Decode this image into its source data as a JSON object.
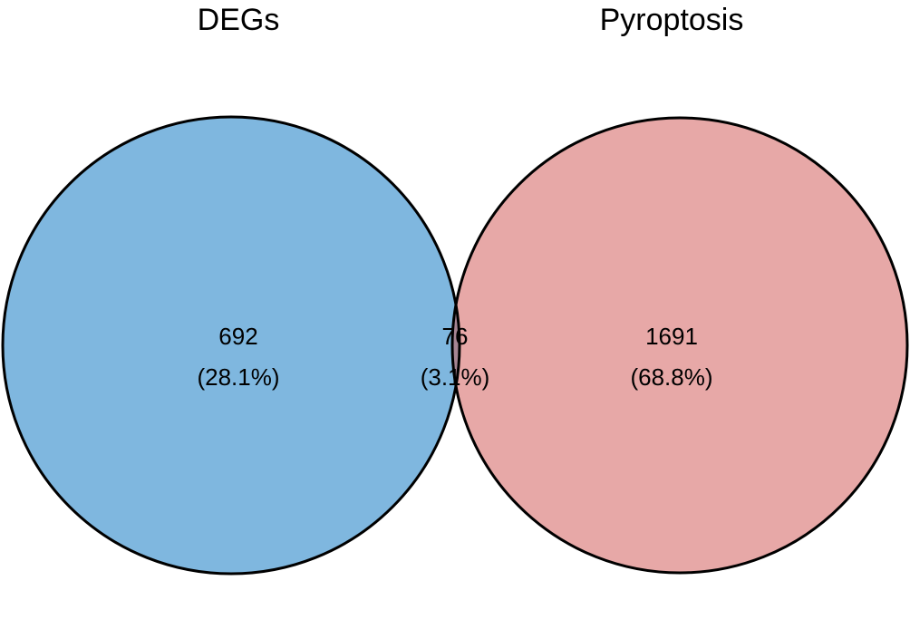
{
  "diagram": {
    "type": "venn",
    "sets": [
      {
        "label": "DEGs",
        "fill": "#7FB7DF"
      },
      {
        "label": "Pyroptosis",
        "fill": "#E7A8A7"
      }
    ],
    "overlap_fill": "#A58593",
    "outline_color": "#000000",
    "regions": {
      "left_only": {
        "count": "692",
        "percent": "(28.1%)"
      },
      "intersection": {
        "count": "76",
        "percent": "(3.1%)"
      },
      "right_only": {
        "count": "1691",
        "percent": "(68.8%)"
      }
    }
  }
}
